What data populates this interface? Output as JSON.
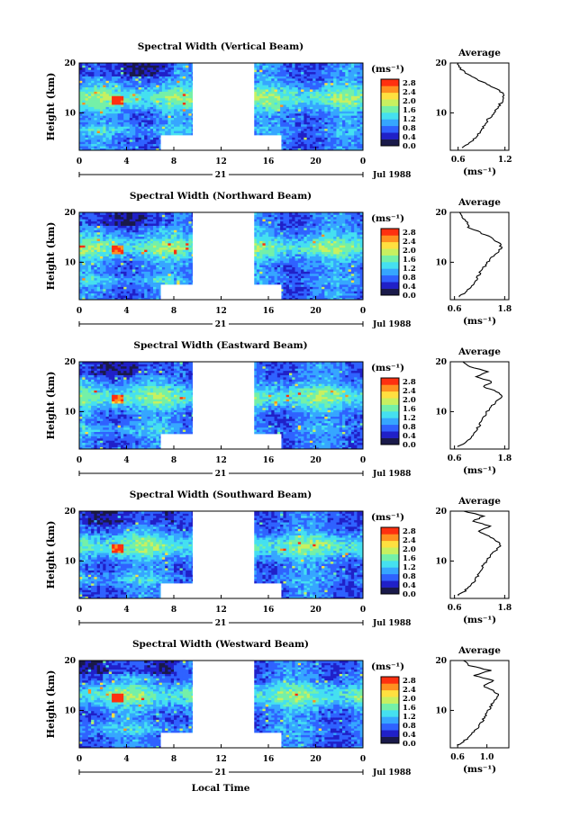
{
  "figure": {
    "xlabel": "Local Time",
    "date_label": "Jul 1988",
    "day_label": "21",
    "colorbar_unit": "(ms⁻¹)",
    "colorbar_ticks": [
      "0.0",
      "0.4",
      "0.8",
      "1.2",
      "1.6",
      "2.0",
      "2.4",
      "2.8"
    ],
    "colors": {
      "colormap": [
        "#1a1a4a",
        "#2020c8",
        "#2f62ff",
        "#36a6ff",
        "#45e0f0",
        "#74f0a8",
        "#c8f060",
        "#ffe040",
        "#ff9020",
        "#ff3010"
      ],
      "gap": "#ffffff",
      "frame": "#000000"
    }
  },
  "chart_data": [
    {
      "type": "heatmap",
      "title": "Spectral Width (Vertical Beam)",
      "ylabel": "Height (km)",
      "xlim": [
        0,
        24
      ],
      "ylim": [
        2.5,
        20
      ],
      "xticks": [
        "0",
        "4",
        "8",
        "12",
        "16",
        "20",
        "0"
      ],
      "yticks": [
        "10",
        "20"
      ],
      "value_range": [
        0.0,
        2.8
      ],
      "gaps": [
        {
          "time": [
            9.6,
            14.8
          ],
          "height": [
            2.5,
            20
          ]
        },
        {
          "time": [
            6.9,
            17.1
          ],
          "height": [
            2.5,
            5.5
          ]
        }
      ],
      "profile": {
        "title": "Average",
        "xlabel": "(ms⁻¹)",
        "xticks": [
          "0.6",
          "1.2"
        ],
        "xlim": [
          0.5,
          1.25
        ],
        "yticks": [
          "10",
          "20"
        ],
        "ylim": [
          2.5,
          20
        ],
        "height": [
          3,
          4,
          5,
          6,
          7,
          8,
          9,
          10,
          11,
          12,
          13,
          14,
          15,
          16,
          17,
          18,
          19,
          20
        ],
        "value": [
          0.66,
          0.74,
          0.82,
          0.88,
          0.92,
          0.95,
          1.0,
          1.06,
          1.1,
          1.15,
          1.19,
          1.16,
          1.07,
          0.95,
          0.8,
          0.69,
          0.62,
          0.6
        ]
      }
    },
    {
      "type": "heatmap",
      "title": "Spectral Width (Northward Beam)",
      "ylabel": "Height (km)",
      "xlim": [
        0,
        24
      ],
      "ylim": [
        2.5,
        20
      ],
      "xticks": [
        "0",
        "4",
        "8",
        "12",
        "16",
        "20",
        "0"
      ],
      "yticks": [
        "10",
        "20"
      ],
      "value_range": [
        0.0,
        2.8
      ],
      "gaps": [
        {
          "time": [
            9.6,
            14.8
          ],
          "height": [
            2.5,
            20
          ]
        },
        {
          "time": [
            6.9,
            17.1
          ],
          "height": [
            2.5,
            5.5
          ]
        }
      ],
      "profile": {
        "title": "Average",
        "xlabel": "(ms⁻¹)",
        "xticks": [
          "0.6",
          "1.8"
        ],
        "xlim": [
          0.5,
          1.9
        ],
        "yticks": [
          "10",
          "20"
        ],
        "ylim": [
          2.5,
          20
        ],
        "height": [
          3,
          4,
          5,
          6,
          7,
          8,
          9,
          10,
          11,
          12,
          13,
          14,
          15,
          16,
          17,
          18,
          19,
          20
        ],
        "value": [
          0.7,
          0.85,
          0.98,
          1.08,
          1.15,
          1.22,
          1.3,
          1.4,
          1.5,
          1.62,
          1.72,
          1.65,
          1.45,
          1.2,
          0.95,
          0.9,
          0.78,
          0.72
        ]
      }
    },
    {
      "type": "heatmap",
      "title": "Spectral Width (Eastward Beam)",
      "ylabel": "Height (km)",
      "xlim": [
        0,
        24
      ],
      "ylim": [
        2.5,
        20
      ],
      "xticks": [
        "0",
        "4",
        "8",
        "12",
        "16",
        "20",
        "0"
      ],
      "yticks": [
        "10",
        "20"
      ],
      "value_range": [
        0.0,
        2.8
      ],
      "gaps": [
        {
          "time": [
            9.6,
            14.8
          ],
          "height": [
            2.5,
            20
          ]
        },
        {
          "time": [
            6.9,
            17.1
          ],
          "height": [
            2.5,
            5.5
          ]
        }
      ],
      "profile": {
        "title": "Average",
        "xlabel": "(ms⁻¹)",
        "xticks": [
          "0.6",
          "1.8"
        ],
        "xlim": [
          0.5,
          1.9
        ],
        "yticks": [
          "10",
          "20"
        ],
        "ylim": [
          2.5,
          20
        ],
        "height": [
          3,
          4,
          5,
          6,
          7,
          8,
          9,
          10,
          11,
          12,
          13,
          14,
          15,
          16,
          17,
          18,
          19,
          20
        ],
        "value": [
          0.7,
          0.88,
          1.0,
          1.1,
          1.18,
          1.24,
          1.3,
          1.38,
          1.48,
          1.6,
          1.74,
          1.6,
          1.3,
          1.5,
          1.1,
          1.4,
          0.95,
          0.8
        ]
      }
    },
    {
      "type": "heatmap",
      "title": "Spectral Width (Southward Beam)",
      "ylabel": "Height (km)",
      "xlim": [
        0,
        24
      ],
      "ylim": [
        2.5,
        20
      ],
      "xticks": [
        "0",
        "4",
        "8",
        "12",
        "16",
        "20",
        "0"
      ],
      "yticks": [
        "10",
        "20"
      ],
      "value_range": [
        0.0,
        2.8
      ],
      "gaps": [
        {
          "time": [
            9.6,
            14.8
          ],
          "height": [
            2.5,
            20
          ]
        },
        {
          "time": [
            6.9,
            17.1
          ],
          "height": [
            2.5,
            5.5
          ]
        }
      ],
      "profile": {
        "title": "Average",
        "xlabel": "(ms⁻¹)",
        "xticks": [
          "0.6",
          "1.8"
        ],
        "xlim": [
          0.5,
          1.9
        ],
        "yticks": [
          "10",
          "20"
        ],
        "ylim": [
          2.5,
          20
        ],
        "height": [
          3,
          4,
          5,
          6,
          7,
          8,
          9,
          10,
          11,
          12,
          13,
          14,
          15,
          16,
          17,
          18,
          19,
          20
        ],
        "value": [
          0.68,
          0.85,
          0.98,
          1.08,
          1.16,
          1.22,
          1.28,
          1.36,
          1.46,
          1.58,
          1.7,
          1.62,
          1.4,
          1.2,
          1.45,
          1.05,
          1.3,
          0.82
        ]
      }
    },
    {
      "type": "heatmap",
      "title": "Spectral Width (Westward Beam)",
      "ylabel": "Height (km)",
      "xlim": [
        0,
        24
      ],
      "ylim": [
        2.5,
        20
      ],
      "xticks": [
        "0",
        "4",
        "8",
        "12",
        "16",
        "20",
        "0"
      ],
      "yticks": [
        "10",
        "20"
      ],
      "value_range": [
        0.0,
        2.8
      ],
      "gaps": [
        {
          "time": [
            9.6,
            14.8
          ],
          "height": [
            2.5,
            20
          ]
        },
        {
          "time": [
            6.9,
            17.1
          ],
          "height": [
            2.5,
            5.5
          ]
        }
      ],
      "profile": {
        "title": "Average",
        "xlabel": "(ms⁻¹)",
        "xticks": [
          "0.6",
          "1.0"
        ],
        "xlim": [
          0.5,
          1.3
        ],
        "yticks": [
          "10",
          "20"
        ],
        "ylim": [
          2.5,
          20
        ],
        "height": [
          3,
          4,
          5,
          6,
          7,
          8,
          9,
          10,
          11,
          12,
          13,
          14,
          15,
          16,
          17,
          18,
          19,
          20
        ],
        "value": [
          0.6,
          0.7,
          0.78,
          0.84,
          0.9,
          0.94,
          0.98,
          1.02,
          1.06,
          1.1,
          1.16,
          1.08,
          0.95,
          1.1,
          0.82,
          1.05,
          0.75,
          0.68
        ]
      }
    }
  ]
}
